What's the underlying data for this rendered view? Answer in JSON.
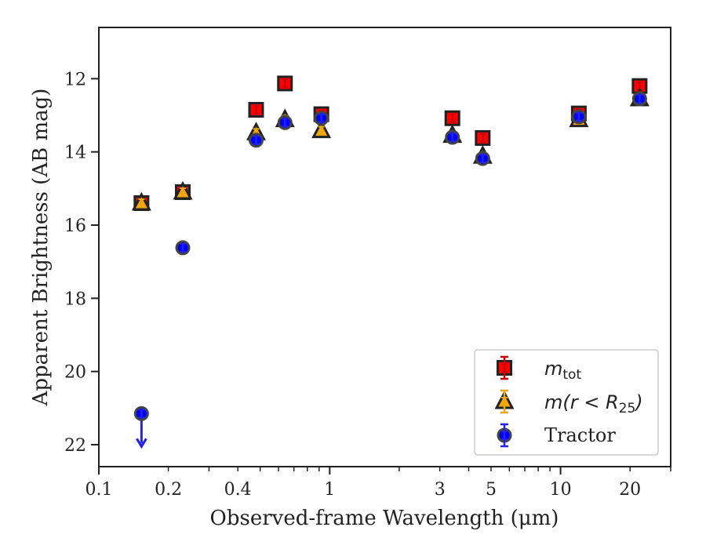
{
  "chart_data": {
    "type": "scatter",
    "xscale": "log",
    "xlim": [
      0.1,
      30
    ],
    "ylim": [
      22.6,
      10.6
    ],
    "y_inverted": true,
    "xlabel": "Observed-frame Wavelength (μm)",
    "ylabel": "Apparent Brightness (AB mag)",
    "x_ticks": [
      0.1,
      0.2,
      0.4,
      1,
      3,
      5,
      10,
      20
    ],
    "x_tick_labels": [
      "0.1",
      "0.2",
      "0.4",
      "1",
      "3",
      "5",
      "10",
      "20"
    ],
    "y_ticks": [
      12,
      14,
      16,
      18,
      20,
      22
    ],
    "y_tick_labels": [
      "12",
      "14",
      "16",
      "18",
      "20",
      "22"
    ],
    "grid": false,
    "legend_position": "lower-right",
    "series": [
      {
        "name": "m_tot",
        "marker": "square",
        "color": "#ff0000",
        "edge_color": "#222222",
        "error_color": "#cc0000",
        "points": [
          {
            "x": 0.153,
            "y": 15.4
          },
          {
            "x": 0.231,
            "y": 15.1
          },
          {
            "x": 0.48,
            "y": 12.85
          },
          {
            "x": 0.64,
            "y": 12.13
          },
          {
            "x": 0.92,
            "y": 12.97
          },
          {
            "x": 3.4,
            "y": 13.08
          },
          {
            "x": 4.6,
            "y": 13.62
          },
          {
            "x": 12.0,
            "y": 12.95
          },
          {
            "x": 22.0,
            "y": 12.2
          }
        ]
      },
      {
        "name": "m(r < R25)",
        "marker": "triangle",
        "color": "#ffa500",
        "edge_color": "#222222",
        "error_color": "#e6a817",
        "points": [
          {
            "x": 0.153,
            "y": 15.4
          },
          {
            "x": 0.231,
            "y": 15.1
          },
          {
            "x": 0.48,
            "y": 13.48
          },
          {
            "x": 0.64,
            "y": 13.12
          },
          {
            "x": 0.92,
            "y": 13.42
          },
          {
            "x": 3.4,
            "y": 13.55
          },
          {
            "x": 4.6,
            "y": 14.12
          },
          {
            "x": 12.0,
            "y": 13.12
          },
          {
            "x": 22.0,
            "y": 12.55
          }
        ]
      },
      {
        "name": "Tractor",
        "marker": "circle",
        "color": "#0000ff",
        "edge_color": "#444444",
        "error_color": "#2222ee",
        "points": [
          {
            "x": 0.153,
            "y": 21.15,
            "upper_limit": true
          },
          {
            "x": 0.231,
            "y": 16.62
          },
          {
            "x": 0.48,
            "y": 13.68
          },
          {
            "x": 0.64,
            "y": 13.2
          },
          {
            "x": 0.92,
            "y": 13.08
          },
          {
            "x": 3.4,
            "y": 13.6
          },
          {
            "x": 4.6,
            "y": 14.18
          },
          {
            "x": 12.0,
            "y": 13.04
          },
          {
            "x": 22.0,
            "y": 12.55
          }
        ]
      }
    ]
  },
  "legend": {
    "entries": [
      {
        "main": "m",
        "sub": "tot",
        "suffix": ""
      },
      {
        "main": "m(r < R",
        "sub": "25",
        "suffix": ")"
      },
      {
        "main": "Tractor",
        "sub": "",
        "suffix": ""
      }
    ]
  }
}
